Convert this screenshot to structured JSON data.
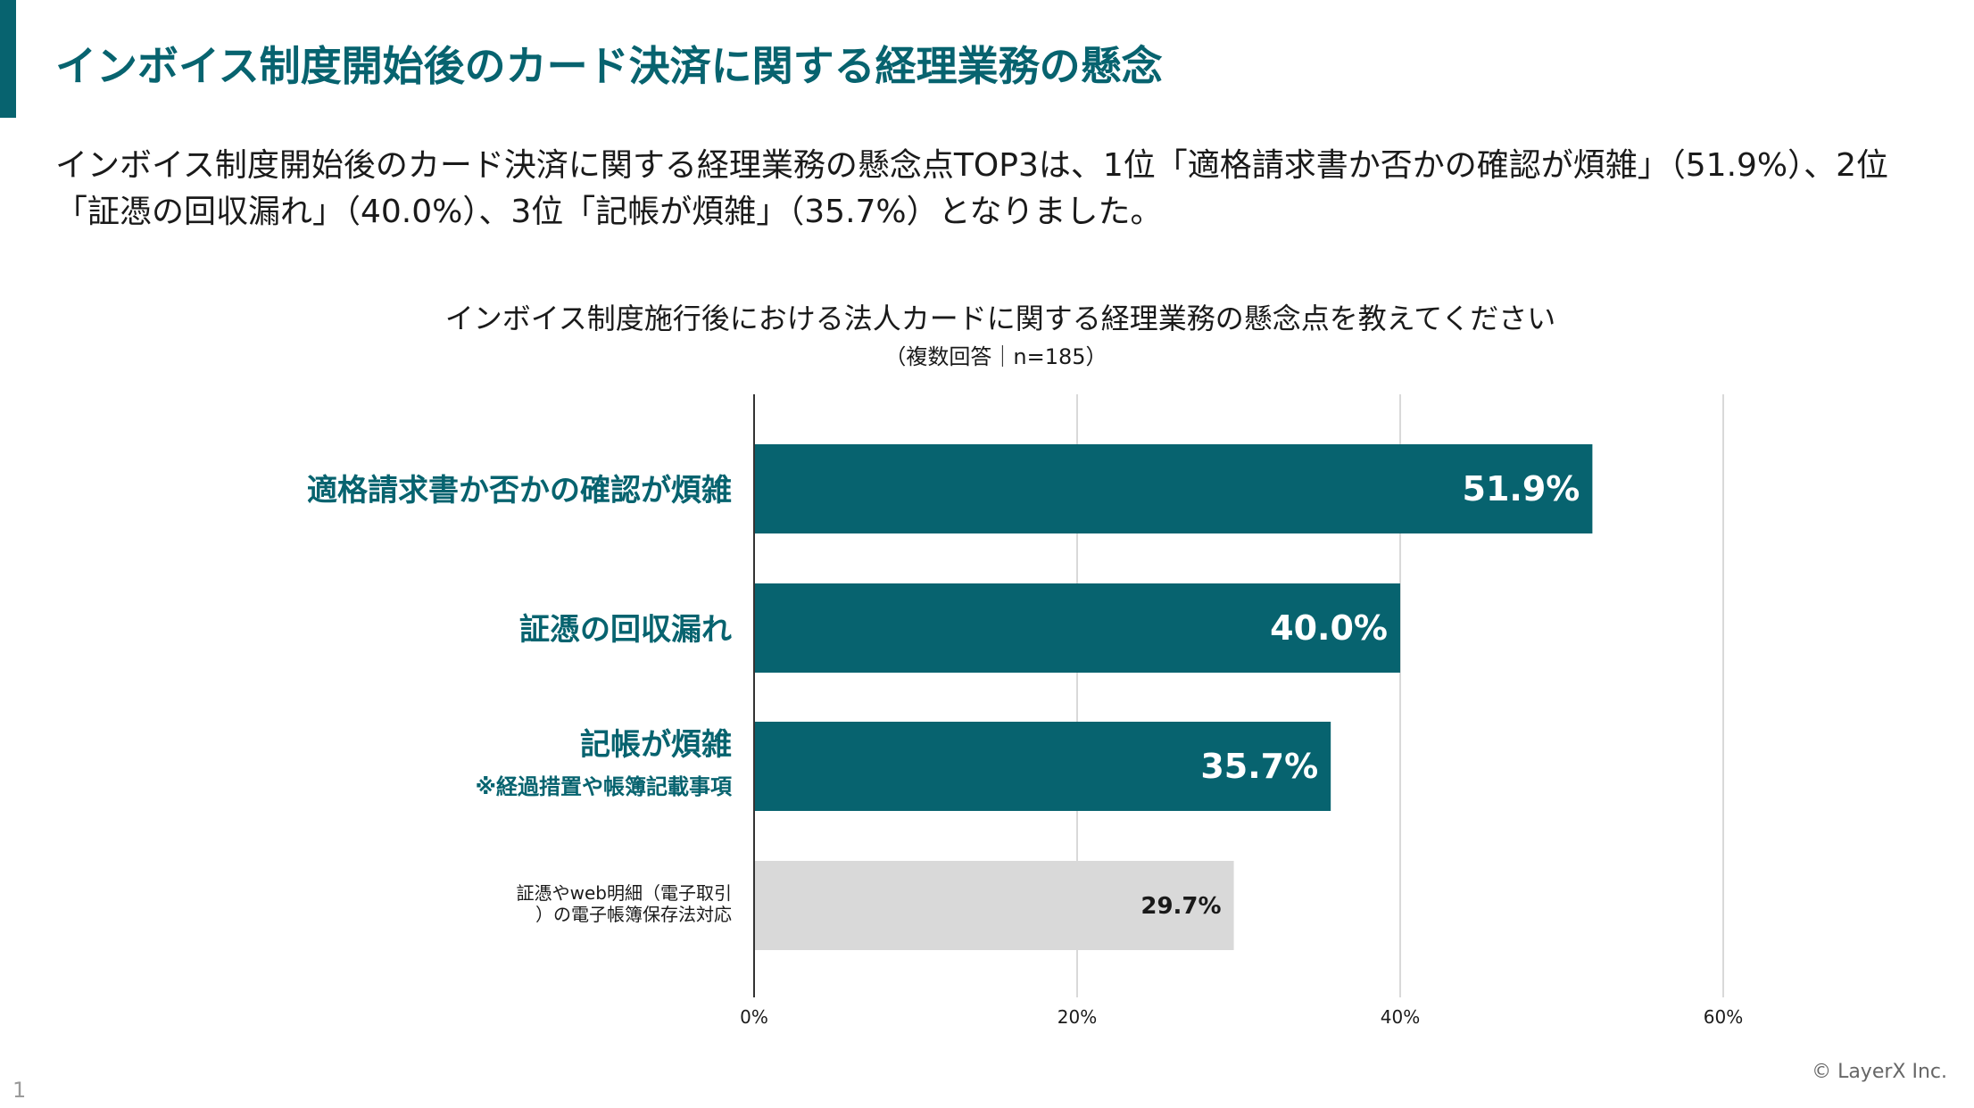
{
  "slide": {
    "title": "インボイス制度開始後のカード決済に関する経理業務の懸念",
    "summary_line1": "インボイス制度開始後のカード決済に関する経理業務の懸念点TOP3は、1位「適格請求書か否かの確認が煩雑」（51.9%）、2位",
    "summary_line2": "「証憑の回収漏れ」（40.0%）、3位「記帳が煩雑」（35.7%）となりました。",
    "copyright": "© LayerX Inc.",
    "page_number": "1"
  },
  "colors": {
    "accent": "#07636f",
    "bar_highlight": "#07636f",
    "bar_muted": "#d9d9d9",
    "grid": "#d9d9d9"
  },
  "chart_data": {
    "type": "bar",
    "orientation": "horizontal",
    "title": "インボイス制度施行後における法人カードに関する経理業務の懸念点を教えてください",
    "subtitle": "（複数回答｜n=185）",
    "categories": [
      "適格請求書か否かの確認が煩雑",
      "証憑の回収漏れ",
      "記帳が煩雑",
      "証憑やweb明細（電子取引）の電子帳簿保存法対応"
    ],
    "category_display": [
      {
        "main": "適格請求書か否かの確認が煩雑",
        "note": "",
        "style": "highlight"
      },
      {
        "main": "証憑の回収漏れ",
        "note": "",
        "style": "highlight"
      },
      {
        "main": "記帳が煩雑",
        "note": "※経過措置や帳簿記載事項",
        "style": "highlight"
      },
      {
        "line1": "証憑やweb明細（電子取引",
        "line2": "）の電子帳簿保存法対応",
        "style": "muted"
      }
    ],
    "values": [
      51.9,
      40.0,
      35.7,
      29.7
    ],
    "value_labels": [
      "51.9%",
      "40.0%",
      "35.7%",
      "29.7%"
    ],
    "xlim": [
      0,
      70
    ],
    "xticks": [
      0,
      20,
      40,
      60
    ],
    "xtick_labels": [
      "0%",
      "20%",
      "40%",
      "60%"
    ],
    "grid": true
  }
}
